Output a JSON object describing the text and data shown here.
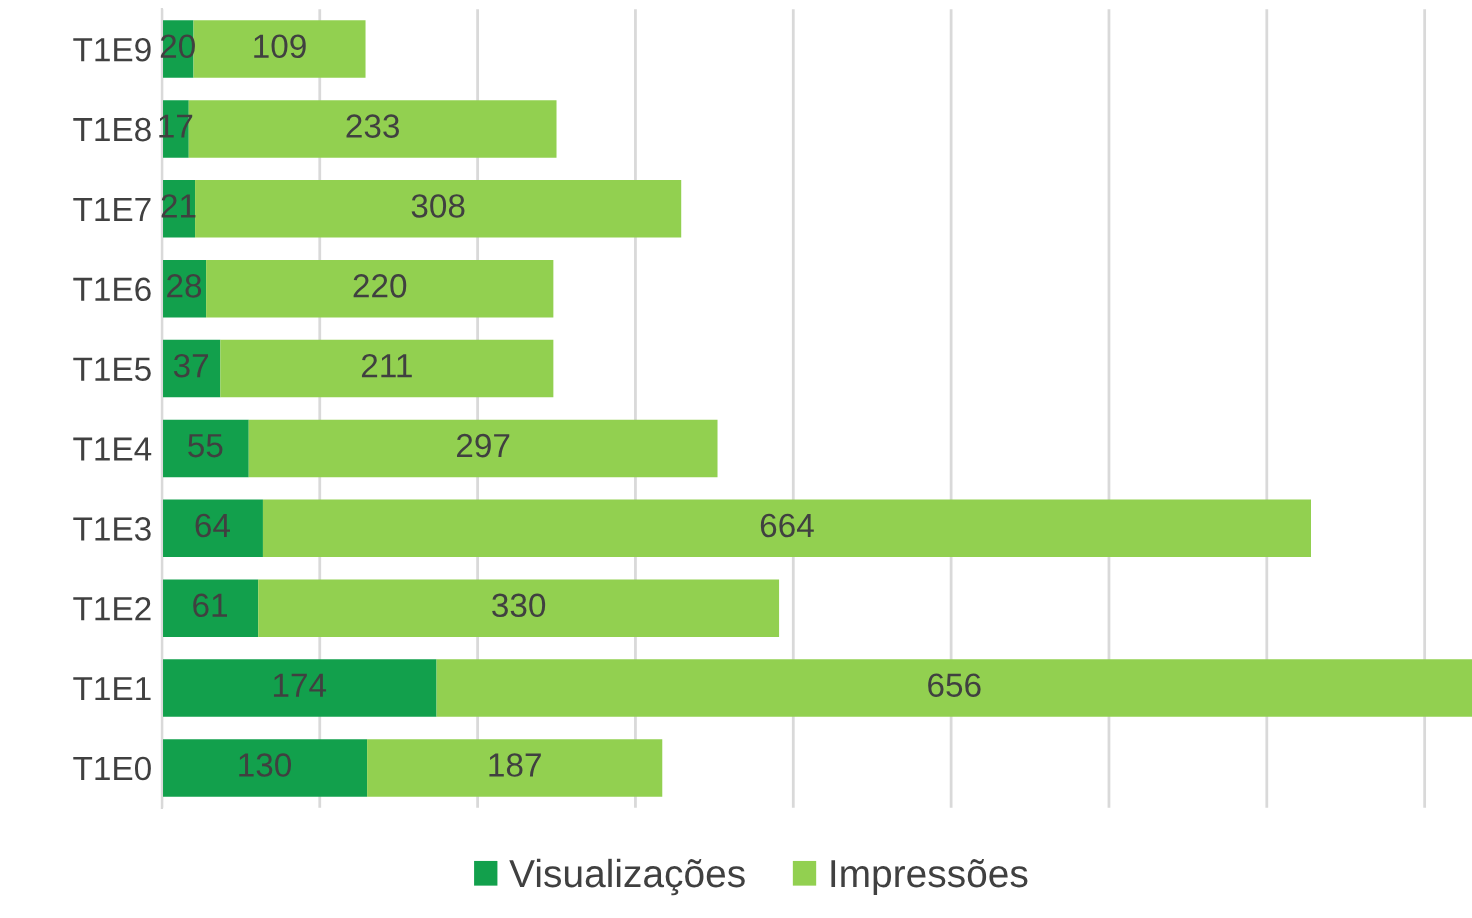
{
  "chart_data": {
    "type": "bar",
    "orientation": "horizontal",
    "stacked": true,
    "data_labels": true,
    "grid": "x",
    "legend": "bottom",
    "tick_labels": "y",
    "categories": [
      "T1E9",
      "T1E8",
      "T1E7",
      "T1E6",
      "T1E5",
      "T1E4",
      "T1E3",
      "T1E2",
      "T1E1",
      "T1E0"
    ],
    "xticks": [
      {
        "value": 0,
        "label": null
      },
      {
        "value": 100,
        "label": null
      },
      {
        "value": 200,
        "label": null
      },
      {
        "value": 300,
        "label": null
      },
      {
        "value": 400,
        "label": null
      },
      {
        "value": 500,
        "label": null
      },
      {
        "value": 600,
        "label": null
      },
      {
        "value": 700,
        "label": null
      },
      {
        "value": 800,
        "label": null
      }
    ],
    "series": [
      {
        "name": "Visualizações",
        "color": "#12a04c",
        "values": [
          20,
          17,
          21,
          28,
          37,
          55,
          64,
          61,
          174,
          130
        ]
      },
      {
        "name": "Impressões",
        "color": "#92d050",
        "values": [
          109,
          233,
          308,
          220,
          211,
          297,
          664,
          330,
          656,
          187
        ]
      }
    ]
  }
}
